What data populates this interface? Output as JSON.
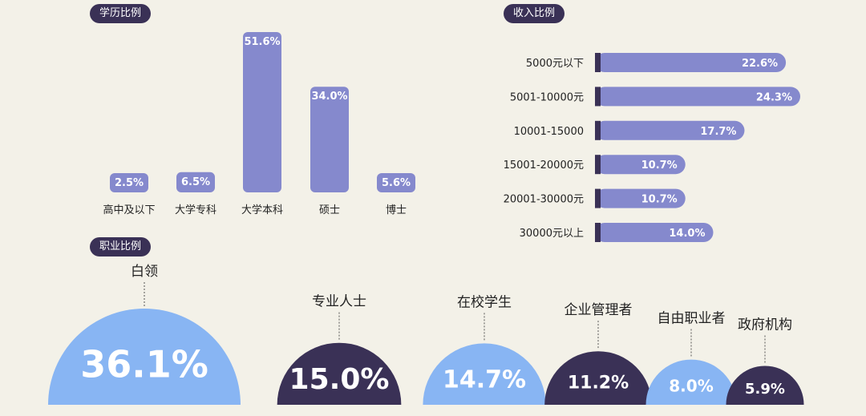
{
  "colors": {
    "background": "#f3f1e8",
    "dark": "#3a3156",
    "bar": "#8589cd",
    "light_blue": "#88b5f3"
  },
  "chart_data": [
    {
      "type": "bar",
      "title": "学历比例",
      "categories": [
        "高中及以下",
        "大学专科",
        "大学本科",
        "硕士",
        "博士"
      ],
      "values": [
        2.5,
        6.5,
        51.6,
        34.0,
        5.6
      ],
      "value_labels": [
        "2.5%",
        "6.5%",
        "51.6%",
        "34.0%",
        "5.6%"
      ],
      "unit": "%"
    },
    {
      "type": "bar",
      "orientation": "horizontal",
      "title": "收入比例",
      "categories": [
        "5000元以下",
        "5001-10000元",
        "10001-15000",
        "15001-20000元",
        "20001-30000元",
        "30000元以上"
      ],
      "values": [
        22.6,
        24.3,
        17.7,
        10.7,
        10.7,
        14.0
      ],
      "value_labels": [
        "22.6%",
        "24.3%",
        "17.7%",
        "10.7%",
        "10.7%",
        "14.0%"
      ],
      "unit": "%"
    },
    {
      "type": "bar",
      "style": "semicircles",
      "title": "职业比例",
      "categories": [
        "白领",
        "专业人士",
        "在校学生",
        "企业管理者",
        "自由职业者",
        "政府机构"
      ],
      "values": [
        36.1,
        15.0,
        14.7,
        11.2,
        8.0,
        5.9
      ],
      "value_labels": [
        "36.1%",
        "15.0%",
        "14.7%",
        "11.2%",
        "8.0%",
        "5.9%"
      ],
      "colors": [
        "#88b5f3",
        "#3a3156",
        "#88b5f3",
        "#3a3156",
        "#88b5f3",
        "#3a3156"
      ],
      "unit": "%"
    }
  ]
}
